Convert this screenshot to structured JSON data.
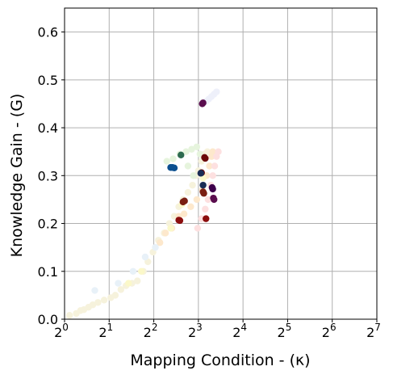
{
  "chart_data": {
    "type": "scatter",
    "xlabel": "Mapping Condition - (κ)",
    "ylabel": "Knowledge Gain - (G)",
    "x_scale": "log2",
    "xlim": [
      1,
      128
    ],
    "ylim": [
      0,
      0.65
    ],
    "grid": true,
    "x_ticks": [
      {
        "base": "2",
        "exp": "0",
        "value": 1
      },
      {
        "base": "2",
        "exp": "1",
        "value": 2
      },
      {
        "base": "2",
        "exp": "2",
        "value": 4
      },
      {
        "base": "2",
        "exp": "3",
        "value": 8
      },
      {
        "base": "2",
        "exp": "4",
        "value": 16
      },
      {
        "base": "2",
        "exp": "5",
        "value": 32
      },
      {
        "base": "2",
        "exp": "6",
        "value": 64
      },
      {
        "base": "2",
        "exp": "7",
        "value": 128
      }
    ],
    "y_ticks": [
      {
        "label": "0.0",
        "value": 0.0
      },
      {
        "label": "0.1",
        "value": 0.1
      },
      {
        "label": "0.2",
        "value": 0.2
      },
      {
        "label": "0.3",
        "value": 0.3
      },
      {
        "label": "0.4",
        "value": 0.4
      },
      {
        "label": "0.5",
        "value": 0.5
      },
      {
        "label": "0.6",
        "value": 0.6
      }
    ],
    "series": [
      {
        "color": "#f6f2dc",
        "points": [
          [
            1.08,
            0.008
          ],
          [
            1.2,
            0.012
          ],
          [
            1.28,
            0.018
          ],
          [
            1.35,
            0.02
          ],
          [
            1.45,
            0.025
          ],
          [
            1.55,
            0.03
          ],
          [
            1.68,
            0.035
          ],
          [
            1.85,
            0.04
          ],
          [
            2.05,
            0.045
          ],
          [
            2.2,
            0.05
          ],
          [
            2.4,
            0.062
          ],
          [
            2.6,
            0.07
          ],
          [
            2.85,
            0.075
          ],
          [
            3.1,
            0.08
          ],
          [
            3.4,
            0.1
          ],
          [
            3.65,
            0.12
          ],
          [
            3.95,
            0.14
          ],
          [
            4.3,
            0.165
          ],
          [
            4.7,
            0.18
          ],
          [
            5.1,
            0.2
          ],
          [
            5.5,
            0.215
          ],
          [
            5.9,
            0.235
          ],
          [
            6.3,
            0.25
          ],
          [
            6.8,
            0.265
          ],
          [
            7.3,
            0.28
          ],
          [
            7.7,
            0.3
          ],
          [
            8.0,
            0.31
          ],
          [
            8.4,
            0.33
          ],
          [
            8.8,
            0.345
          ],
          [
            9.2,
            0.35
          ]
        ]
      },
      {
        "color": "#fde8cc",
        "points": [
          [
            4.4,
            0.16
          ],
          [
            4.8,
            0.18
          ],
          [
            5.3,
            0.19
          ],
          [
            5.9,
            0.215
          ],
          [
            6.4,
            0.22
          ],
          [
            7.1,
            0.235
          ],
          [
            7.8,
            0.25
          ],
          [
            8.5,
            0.27
          ],
          [
            9.1,
            0.3
          ],
          [
            9.5,
            0.32
          ],
          [
            9.8,
            0.34
          ],
          [
            10.0,
            0.35
          ]
        ]
      },
      {
        "color": "#fde0e0",
        "points": [
          [
            7.9,
            0.19
          ],
          [
            8.4,
            0.21
          ],
          [
            8.9,
            0.23
          ],
          [
            9.3,
            0.25
          ],
          [
            9.7,
            0.28
          ],
          [
            10.0,
            0.3
          ],
          [
            10.3,
            0.32
          ],
          [
            10.6,
            0.34
          ],
          [
            10.9,
            0.35
          ]
        ]
      },
      {
        "color": "#e6f4dd",
        "points": [
          [
            4.9,
            0.33
          ],
          [
            5.4,
            0.335
          ],
          [
            6.0,
            0.345
          ],
          [
            6.6,
            0.35
          ],
          [
            7.2,
            0.355
          ],
          [
            7.8,
            0.36
          ],
          [
            8.2,
            0.345
          ],
          [
            7.4,
            0.3
          ],
          [
            6.8,
            0.32
          ]
        ]
      },
      {
        "color": "#eef0fa",
        "points": [
          [
            9.0,
            0.455
          ],
          [
            9.4,
            0.46
          ],
          [
            9.8,
            0.465
          ],
          [
            10.2,
            0.47
          ],
          [
            10.6,
            0.475
          ]
        ]
      },
      {
        "color": "#e8f1f8",
        "points": [
          [
            1.6,
            0.06
          ],
          [
            2.3,
            0.075
          ],
          [
            2.9,
            0.1
          ],
          [
            3.5,
            0.13
          ],
          [
            4.1,
            0.15
          ]
        ]
      },
      {
        "color": "#fbf8c9",
        "points": [
          [
            2.7,
            0.075
          ],
          [
            3.3,
            0.1
          ],
          [
            5.2,
            0.19
          ],
          [
            6.2,
            0.24
          ],
          [
            8.6,
            0.295
          ]
        ]
      },
      {
        "color": "#5a0d4e",
        "points": [
          [
            8.5,
            0.45
          ],
          [
            8.6,
            0.452
          ],
          [
            10.1,
            0.253
          ],
          [
            10.2,
            0.25
          ]
        ]
      },
      {
        "color": "#3f004b",
        "points": [
          [
            9.9,
            0.275
          ],
          [
            10.0,
            0.272
          ]
        ]
      },
      {
        "color": "#6b0a0a",
        "points": [
          [
            8.8,
            0.338
          ],
          [
            8.9,
            0.336
          ],
          [
            8.4,
            0.306
          ]
        ]
      },
      {
        "color": "#0b4f8f",
        "points": [
          [
            5.2,
            0.317
          ],
          [
            5.35,
            0.317
          ],
          [
            5.5,
            0.316
          ]
        ]
      },
      {
        "color": "#1a2d55",
        "points": [
          [
            8.6,
            0.28
          ],
          [
            8.3,
            0.305
          ]
        ]
      },
      {
        "color": "#7a1e12",
        "points": [
          [
            6.3,
            0.245
          ],
          [
            6.45,
            0.247
          ],
          [
            8.6,
            0.266
          ],
          [
            8.7,
            0.263
          ]
        ]
      },
      {
        "color": "#8b0d0d",
        "points": [
          [
            5.9,
            0.207
          ],
          [
            6.0,
            0.206
          ],
          [
            9.0,
            0.21
          ]
        ]
      },
      {
        "color": "#2d6a4f",
        "points": [
          [
            6.1,
            0.343
          ]
        ]
      }
    ]
  }
}
